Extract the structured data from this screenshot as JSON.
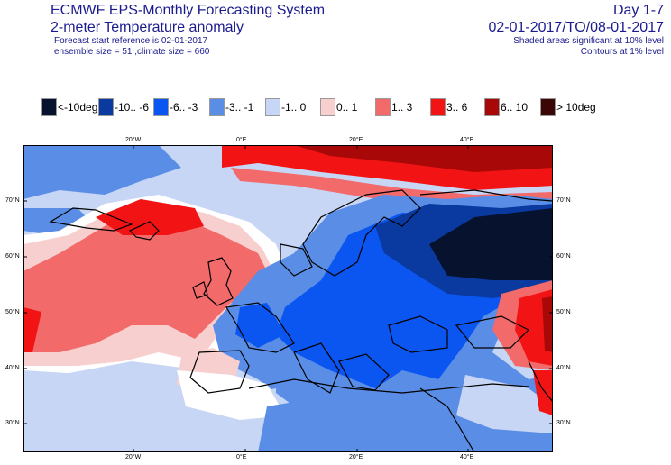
{
  "header": {
    "title": "ECMWF EPS-Monthly Forecasting System",
    "subtitle": "2-meter Temperature anomaly",
    "forecast_start": "Forecast start reference is 02-01-2017",
    "ensemble_info": "ensemble size = 51  ,climate size = 660",
    "day_range": "Day 1-7",
    "period": "02-01-2017/TO/08-01-2017",
    "shaded_note": "Shaded areas significant at 10% level",
    "contour_note": "Contours at 1% level"
  },
  "legend": [
    {
      "label": "<-10deg",
      "color": "#06122e"
    },
    {
      "label": "-10.. -6",
      "color": "#0a3aa0"
    },
    {
      "label": "-6.. -3",
      "color": "#0b55f0"
    },
    {
      "label": "-3.. -1",
      "color": "#5a8ee6"
    },
    {
      "label": "-1..  0",
      "color": "#c8d6f5"
    },
    {
      "label": "0..  1",
      "color": "#f8cfcf"
    },
    {
      "label": "1..  3",
      "color": "#f26a6a"
    },
    {
      "label": "3..  6",
      "color": "#f21414"
    },
    {
      "label": "6.. 10",
      "color": "#a80808"
    },
    {
      "label": "> 10deg",
      "color": "#3a0606"
    }
  ],
  "map": {
    "lon_ticks": [
      "20°W",
      "0°E",
      "20°E",
      "40°E"
    ],
    "lat_ticks": [
      "70°N",
      "60°N",
      "50°N",
      "40°N",
      "30°N"
    ]
  }
}
